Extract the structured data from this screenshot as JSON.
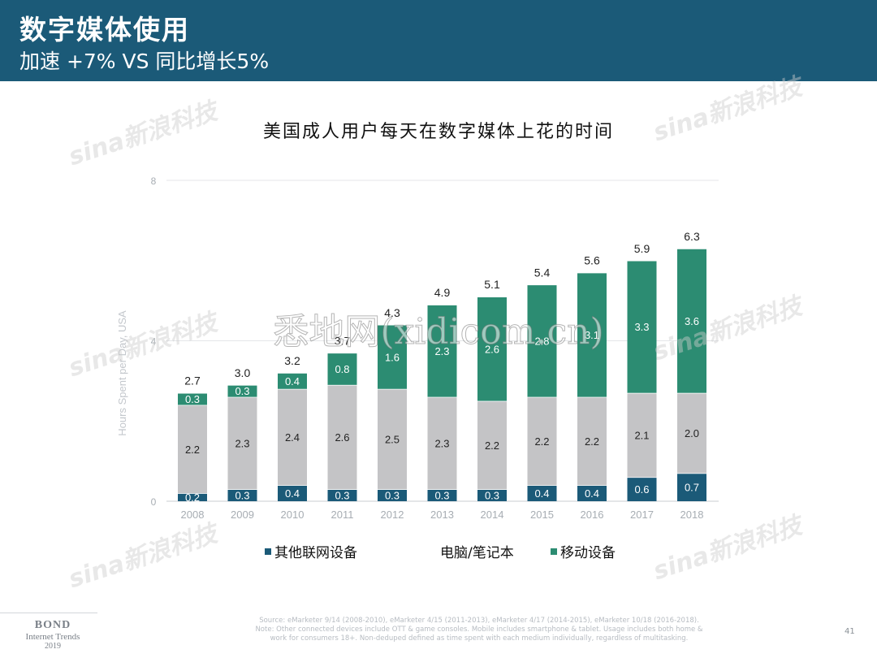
{
  "header": {
    "title": "数字媒体使用",
    "subtitle": "加速 +7% VS 同比增长5%",
    "background": "#1b5a78"
  },
  "chart_title": "美国成人用户每天在数字媒体上花的时间",
  "chart_data": {
    "type": "bar",
    "stacked": true,
    "title": "美国成人用户每天在数字媒体上花的时间",
    "ylabel": "Hours Spent per Day, USA",
    "ylim": [
      0,
      8
    ],
    "yticks": [
      0,
      4,
      8
    ],
    "grid": true,
    "legend_position": "bottom",
    "categories": [
      "2008",
      "2009",
      "2010",
      "2011",
      "2012",
      "2013",
      "2014",
      "2015",
      "2016",
      "2017",
      "2018"
    ],
    "series": [
      {
        "name": "其他联网设备",
        "color": "#1b5a78",
        "values": [
          0.2,
          0.3,
          0.4,
          0.3,
          0.3,
          0.3,
          0.3,
          0.4,
          0.4,
          0.6,
          0.7
        ]
      },
      {
        "name": "电脑/笔记本",
        "color": "#c4c4c6",
        "values": [
          2.2,
          2.3,
          2.4,
          2.6,
          2.5,
          2.3,
          2.2,
          2.2,
          2.2,
          2.1,
          2.0
        ]
      },
      {
        "name": "移动设备",
        "color": "#2c8c72",
        "values": [
          0.3,
          0.3,
          0.4,
          0.8,
          1.6,
          2.3,
          2.6,
          2.8,
          3.1,
          3.3,
          3.6
        ]
      }
    ],
    "totals": [
      2.7,
      3.0,
      3.2,
      3.7,
      4.3,
      4.9,
      5.1,
      5.4,
      5.6,
      5.9,
      6.3
    ]
  },
  "legend": {
    "items": [
      "其他联网设备",
      "电脑/笔记本",
      "移动设备"
    ]
  },
  "source": {
    "line1": "Source: eMarketer 9/14 (2008-2010), eMarketer 4/15 (2011-2013), eMarketer 4/17 (2014-2015), eMarketer 10/18 (2016-2018).",
    "line2": "Note: Other connected devices include OTT & game consoles. Mobile includes smartphone & tablet. Usage includes both home &",
    "line3": "work for consumers 18+. Non-deduped defined as time spent with each medium individually, regardless of multitasking."
  },
  "page_number": "41",
  "brand": {
    "line1": "BOND",
    "line2": "Internet Trends",
    "line3": "2019"
  },
  "watermark": {
    "text": "悉地网(xidicom.cn)",
    "logo_text": "sina新浪科技"
  }
}
